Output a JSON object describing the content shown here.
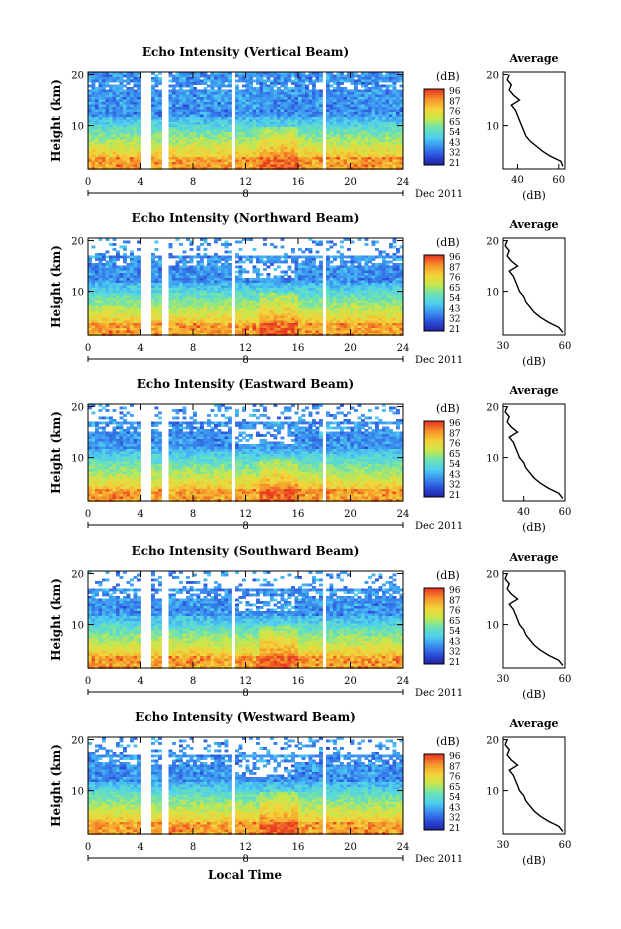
{
  "figure": {
    "xlabel": "Local Time",
    "date_label": "Dec 2011",
    "date_mark": "8",
    "colorbar_unit": "(dB)",
    "colorbar_ticks": [
      "96",
      "87",
      "76",
      "65",
      "54",
      "43",
      "32",
      "21"
    ],
    "colorbar_colors": [
      "#1f1f9a",
      "#2b49d6",
      "#3a8df0",
      "#4fd0f0",
      "#6de2b0",
      "#c8e84a",
      "#f5d23a",
      "#f5952a",
      "#e83a22"
    ]
  },
  "chart_data": [
    {
      "type": "heatmap",
      "title": "Echo Intensity (Vertical Beam)",
      "ylabel": "Height (km)",
      "xlim": [
        0,
        24
      ],
      "ylim": [
        1.5,
        20.5
      ],
      "x_ticks": [
        0,
        4,
        8,
        12,
        16,
        20,
        24
      ],
      "y_ticks": [
        10,
        20
      ],
      "data_gaps_hours": [
        [
          4.0,
          4.7
        ],
        [
          5.6,
          5.9
        ],
        [
          10.9,
          11.2
        ],
        [
          17.6,
          17.9
        ]
      ],
      "profile": {
        "title": "Average",
        "xlabel": "(dB)",
        "xlim": [
          33,
          63
        ],
        "x_ticks": [
          40,
          60
        ],
        "height_km": [
          2,
          3,
          4,
          5,
          6,
          7,
          8,
          9,
          10,
          11,
          12,
          13,
          14,
          15,
          16,
          17,
          18,
          19,
          20
        ],
        "avg_db": [
          62,
          61,
          56,
          52,
          49,
          46,
          44,
          43,
          42,
          41,
          40,
          39,
          37,
          41,
          38,
          36,
          37,
          35,
          36
        ]
      }
    },
    {
      "type": "heatmap",
      "title": "Echo Intensity (Northward Beam)",
      "ylabel": "Height (km)",
      "xlim": [
        0,
        24
      ],
      "ylim": [
        1.5,
        20.5
      ],
      "x_ticks": [
        0,
        4,
        8,
        12,
        16,
        20,
        24
      ],
      "y_ticks": [
        10,
        20
      ],
      "data_gaps_hours": [
        [
          4.0,
          4.7
        ],
        [
          5.6,
          5.9
        ],
        [
          10.9,
          11.2
        ],
        [
          17.6,
          17.9
        ]
      ],
      "profile": {
        "title": "Average",
        "xlabel": "(dB)",
        "xlim": [
          30,
          60
        ],
        "x_ticks": [
          30,
          60
        ],
        "height_km": [
          2,
          3,
          4,
          5,
          6,
          7,
          8,
          9,
          10,
          11,
          12,
          13,
          14,
          15,
          16,
          17,
          18,
          19,
          20
        ],
        "avg_db": [
          59,
          57,
          52,
          48,
          45,
          43,
          41,
          40,
          38,
          37,
          36,
          35,
          33,
          37,
          34,
          32,
          33,
          31,
          32
        ]
      }
    },
    {
      "type": "heatmap",
      "title": "Echo Intensity (Eastward Beam)",
      "ylabel": "Height (km)",
      "xlim": [
        0,
        24
      ],
      "ylim": [
        1.5,
        20.5
      ],
      "x_ticks": [
        0,
        4,
        8,
        12,
        16,
        20,
        24
      ],
      "y_ticks": [
        10,
        20
      ],
      "data_gaps_hours": [
        [
          4.0,
          4.7
        ],
        [
          5.6,
          5.9
        ],
        [
          10.9,
          11.2
        ],
        [
          17.6,
          17.9
        ]
      ],
      "profile": {
        "title": "Average",
        "xlabel": "(dB)",
        "xlim": [
          30,
          60
        ],
        "x_ticks": [
          40,
          60
        ],
        "height_km": [
          2,
          3,
          4,
          5,
          6,
          7,
          8,
          9,
          10,
          11,
          12,
          13,
          14,
          15,
          16,
          17,
          18,
          19,
          20
        ],
        "avg_db": [
          59,
          57,
          52,
          48,
          45,
          43,
          41,
          40,
          38,
          37,
          36,
          35,
          33,
          37,
          34,
          32,
          33,
          31,
          32
        ]
      }
    },
    {
      "type": "heatmap",
      "title": "Echo Intensity (Southward Beam)",
      "ylabel": "Height (km)",
      "xlim": [
        0,
        24
      ],
      "ylim": [
        1.5,
        20.5
      ],
      "x_ticks": [
        0,
        4,
        8,
        12,
        16,
        20,
        24
      ],
      "y_ticks": [
        10,
        20
      ],
      "data_gaps_hours": [
        [
          4.0,
          4.7
        ],
        [
          5.6,
          5.9
        ],
        [
          10.9,
          11.2
        ],
        [
          17.6,
          17.9
        ]
      ],
      "profile": {
        "title": "Average",
        "xlabel": "(dB)",
        "xlim": [
          30,
          60
        ],
        "x_ticks": [
          30,
          60
        ],
        "height_km": [
          2,
          3,
          4,
          5,
          6,
          7,
          8,
          9,
          10,
          11,
          12,
          13,
          14,
          15,
          16,
          17,
          18,
          19,
          20
        ],
        "avg_db": [
          59,
          57,
          52,
          48,
          45,
          43,
          41,
          40,
          38,
          37,
          36,
          35,
          33,
          37,
          34,
          32,
          33,
          31,
          32
        ]
      }
    },
    {
      "type": "heatmap",
      "title": "Echo Intensity (Westward Beam)",
      "ylabel": "Height (km)",
      "xlim": [
        0,
        24
      ],
      "ylim": [
        1.5,
        20.5
      ],
      "x_ticks": [
        0,
        4,
        8,
        12,
        16,
        20,
        24
      ],
      "y_ticks": [
        10,
        20
      ],
      "data_gaps_hours": [
        [
          4.0,
          4.7
        ],
        [
          5.6,
          5.9
        ],
        [
          10.9,
          11.2
        ],
        [
          17.6,
          17.9
        ]
      ],
      "profile": {
        "title": "Average",
        "xlabel": "(dB)",
        "xlim": [
          30,
          60
        ],
        "x_ticks": [
          30,
          60
        ],
        "height_km": [
          2,
          3,
          4,
          5,
          6,
          7,
          8,
          9,
          10,
          11,
          12,
          13,
          14,
          15,
          16,
          17,
          18,
          19,
          20
        ],
        "avg_db": [
          59,
          57,
          52,
          48,
          45,
          43,
          41,
          40,
          38,
          37,
          36,
          35,
          33,
          37,
          34,
          32,
          33,
          31,
          32
        ]
      }
    }
  ]
}
